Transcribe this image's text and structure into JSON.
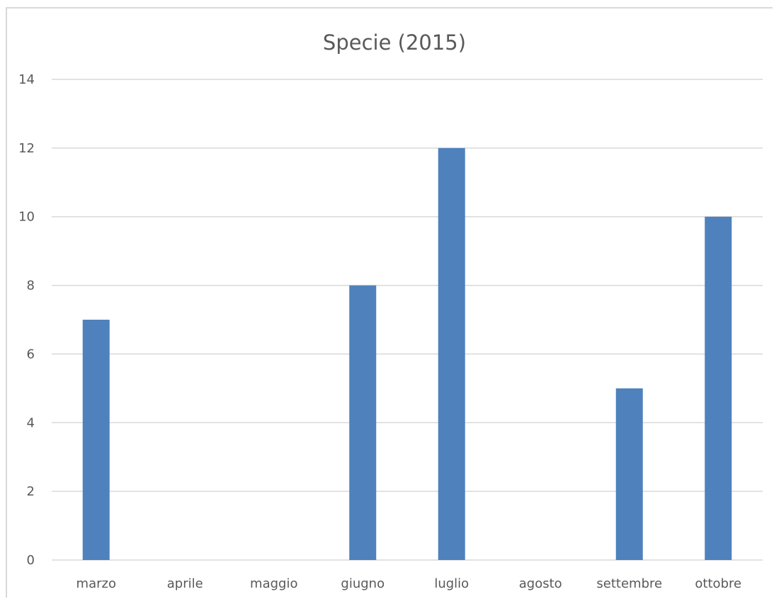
{
  "chart_data": {
    "type": "bar",
    "title": "Specie (2015)",
    "xlabel": "",
    "ylabel": "",
    "categories": [
      "marzo",
      "aprile",
      "maggio",
      "giugno",
      "luglio",
      "agosto",
      "settembre",
      "ottobre"
    ],
    "values": [
      7,
      0,
      0,
      8,
      12,
      0,
      5,
      10
    ],
    "ylim": [
      0,
      14
    ],
    "yticks": [
      0,
      2,
      4,
      6,
      8,
      10,
      12,
      14
    ],
    "grid": true,
    "legend": "none",
    "colors": {
      "bar": "#4f81bd",
      "grid": "#d9d9d9",
      "text": "#595959"
    }
  }
}
